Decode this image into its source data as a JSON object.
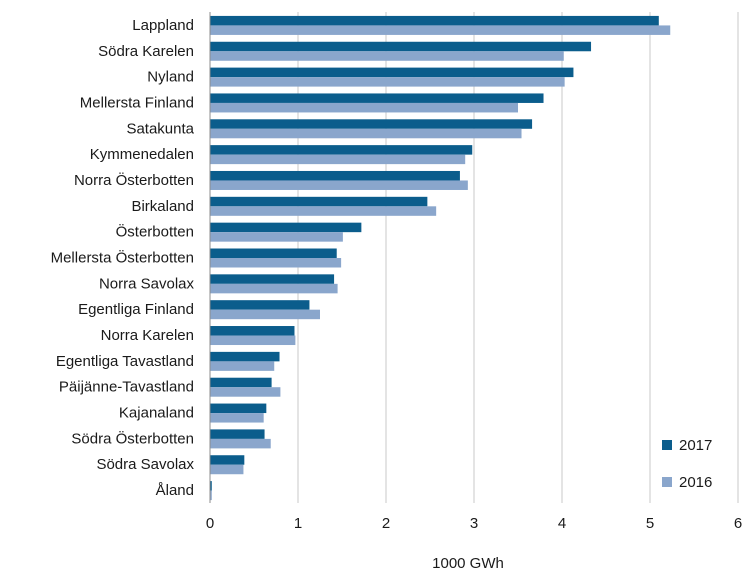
{
  "chart_data": {
    "type": "bar",
    "orientation": "horizontal",
    "title": "",
    "xlabel": "1000 GWh",
    "ylabel": "",
    "xlim": [
      0,
      6
    ],
    "x_ticks": [
      "0",
      "1",
      "2",
      "3",
      "4",
      "5",
      "6"
    ],
    "grid": "vertical",
    "legend_position": "bottom-right",
    "categories": [
      "Lappland",
      "Södra Karelen",
      "Nyland",
      "Mellersta Finland",
      "Satakunta",
      "Kymmenedalen",
      "Norra Österbotten",
      "Birkaland",
      "Österbotten",
      "Mellersta Österbotten",
      "Norra Savolax",
      "Egentliga Finland",
      "Norra Karelen",
      "Egentliga Tavastland",
      "Päijänne-Tavastland",
      "Kajanaland",
      "Södra Österbotten",
      "Södra Savolax",
      "Åland"
    ],
    "series": [
      {
        "name": "2017",
        "color": "#0b5d8c",
        "values": [
          5.1,
          4.33,
          4.13,
          3.79,
          3.66,
          2.98,
          2.84,
          2.47,
          1.72,
          1.44,
          1.41,
          1.13,
          0.96,
          0.79,
          0.7,
          0.64,
          0.62,
          0.39,
          0.02
        ]
      },
      {
        "name": "2016",
        "color": "#8aa6cc",
        "values": [
          5.23,
          4.02,
          4.03,
          3.5,
          3.54,
          2.9,
          2.93,
          2.57,
          1.51,
          1.49,
          1.45,
          1.25,
          0.97,
          0.73,
          0.8,
          0.61,
          0.69,
          0.38,
          0.02
        ]
      }
    ]
  }
}
